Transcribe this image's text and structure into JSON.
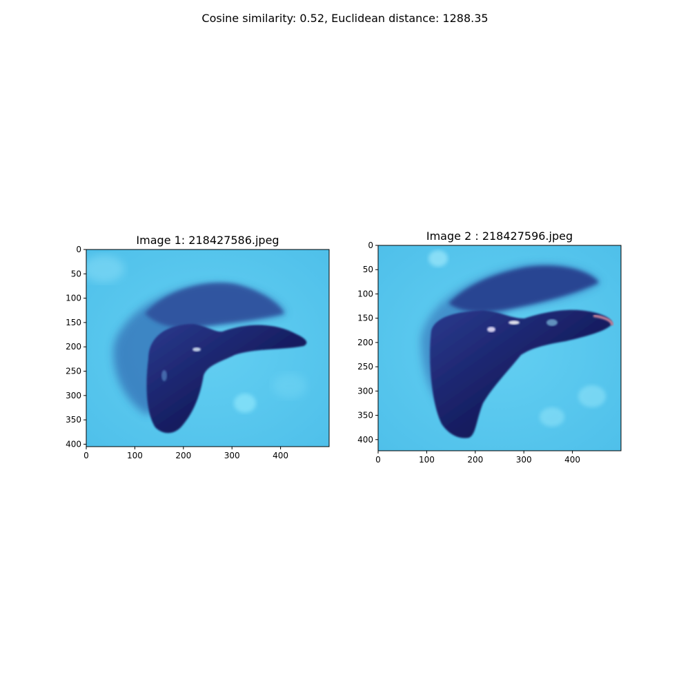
{
  "figure": {
    "suptitle": "Cosine similarity: 0.52, Euclidean distance: 1288.35"
  },
  "panels": [
    {
      "title": "Image 1: 218427586.jpeg",
      "image_width": 500,
      "image_height": 405,
      "x_ticks": [
        0,
        100,
        200,
        300,
        400
      ],
      "y_ticks": [
        0,
        50,
        100,
        150,
        200,
        250,
        300,
        350,
        400
      ]
    },
    {
      "title": "Image 2 : 218427596.jpeg",
      "image_width": 500,
      "image_height": 423,
      "x_ticks": [
        0,
        100,
        200,
        300,
        400
      ],
      "y_ticks": [
        0,
        50,
        100,
        150,
        200,
        250,
        300,
        350,
        400
      ]
    }
  ],
  "colors": {
    "background_blue": "#5ac8ee",
    "specimen_dark": "#141a5c",
    "specimen_mid": "#22307f"
  }
}
